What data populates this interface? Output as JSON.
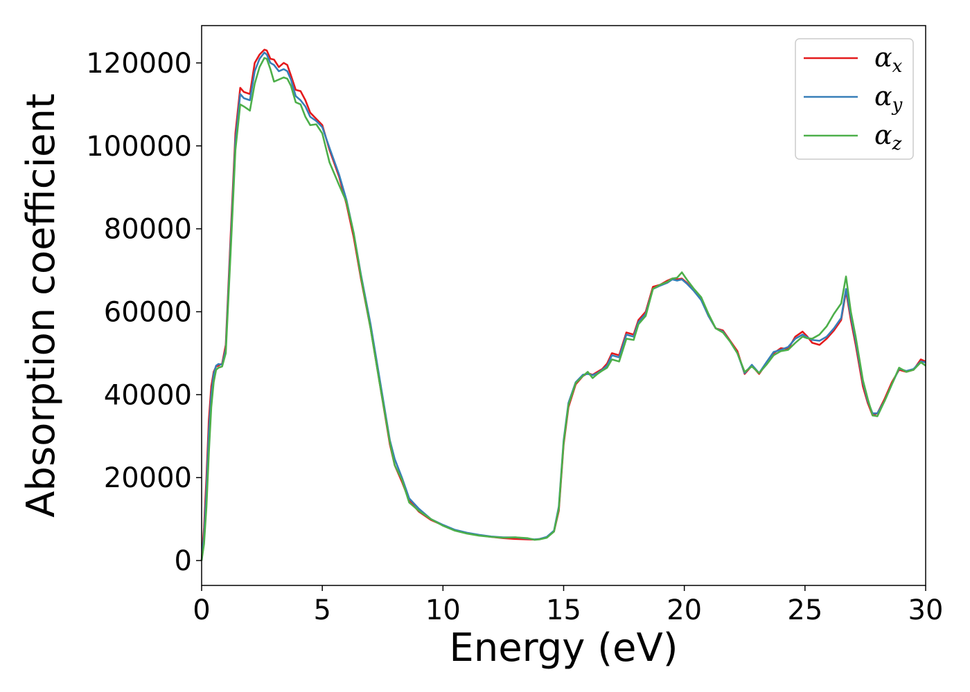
{
  "chart_data": {
    "type": "line",
    "title": "",
    "xlabel": "Energy (eV)",
    "ylabel": "Absorption coefficient",
    "xlim": [
      0,
      30
    ],
    "ylim": [
      -6000,
      129000
    ],
    "xticks": [
      0,
      5,
      10,
      15,
      20,
      25,
      30
    ],
    "xtick_labels": [
      "0",
      "5",
      "10",
      "15",
      "20",
      "25",
      "30"
    ],
    "yticks": [
      0,
      20000,
      40000,
      60000,
      80000,
      100000,
      120000
    ],
    "ytick_labels": [
      "0",
      "20000",
      "40000",
      "60000",
      "80000",
      "100000",
      "120000"
    ],
    "grid": false,
    "legend_position": "top-right",
    "series": [
      {
        "name": "α_x",
        "label_main": "α",
        "label_sub": "x",
        "color": "#e41a1c",
        "x": [
          0,
          0.1,
          0.2,
          0.3,
          0.4,
          0.5,
          0.6,
          0.7,
          0.85,
          1.0,
          1.2,
          1.4,
          1.6,
          1.75,
          2.0,
          2.2,
          2.4,
          2.6,
          2.7,
          2.85,
          3.0,
          3.2,
          3.4,
          3.55,
          3.7,
          3.9,
          4.1,
          4.3,
          4.5,
          4.75,
          5.0,
          5.3,
          5.7,
          6.0,
          6.3,
          6.6,
          7.0,
          7.4,
          7.8,
          8.0,
          8.3,
          8.6,
          9.0,
          9.5,
          10.0,
          10.5,
          11.0,
          11.5,
          12.0,
          12.5,
          13.0,
          13.5,
          13.8,
          14.0,
          14.3,
          14.6,
          14.8,
          15.0,
          15.2,
          15.5,
          15.8,
          16.0,
          16.2,
          16.4,
          16.6,
          16.8,
          17.0,
          17.3,
          17.6,
          17.9,
          18.1,
          18.4,
          18.7,
          19.0,
          19.3,
          19.5,
          19.7,
          19.9,
          20.1,
          20.4,
          20.7,
          21.0,
          21.3,
          21.6,
          21.9,
          22.2,
          22.5,
          22.8,
          23.1,
          23.4,
          23.7,
          24.0,
          24.3,
          24.6,
          24.9,
          25.1,
          25.3,
          25.6,
          25.9,
          26.2,
          26.5,
          26.7,
          26.9,
          27.1,
          27.4,
          27.6,
          27.8,
          28.0,
          28.3,
          28.6,
          28.9,
          29.2,
          29.5,
          29.8,
          30.0
        ],
        "y": [
          0,
          8000,
          20000,
          34000,
          42000,
          45500,
          46800,
          47000,
          47500,
          52000,
          78000,
          103000,
          114000,
          113000,
          112500,
          120000,
          122000,
          123200,
          123000,
          121000,
          120800,
          119000,
          120000,
          119500,
          117000,
          113500,
          113200,
          111000,
          108000,
          106500,
          105000,
          99000,
          92500,
          86000,
          78000,
          68000,
          56000,
          42000,
          28000,
          23000,
          19000,
          14500,
          11800,
          9800,
          8500,
          7300,
          6600,
          6100,
          5700,
          5400,
          5200,
          5100,
          5050,
          5200,
          5600,
          7000,
          12000,
          28000,
          37000,
          42500,
          44500,
          45200,
          44800,
          45500,
          46200,
          47500,
          50000,
          49500,
          55000,
          54500,
          58000,
          60000,
          66000,
          66500,
          67500,
          68000,
          67800,
          68000,
          67000,
          65000,
          63000,
          59000,
          56000,
          55500,
          53000,
          50500,
          45000,
          47000,
          45000,
          47500,
          50000,
          51200,
          51000,
          54000,
          55200,
          54000,
          52500,
          52000,
          53500,
          55500,
          58000,
          65000,
          58000,
          52000,
          42000,
          38000,
          35000,
          35500,
          39000,
          43000,
          46000,
          45500,
          46000,
          48500,
          48000
        ]
      },
      {
        "name": "α_y",
        "label_main": "α",
        "label_sub": "y",
        "color": "#377eb8",
        "x": [
          0,
          0.1,
          0.2,
          0.3,
          0.4,
          0.5,
          0.6,
          0.7,
          0.85,
          1.0,
          1.2,
          1.4,
          1.6,
          1.75,
          2.0,
          2.2,
          2.4,
          2.6,
          2.7,
          2.85,
          3.0,
          3.2,
          3.4,
          3.55,
          3.7,
          3.9,
          4.1,
          4.3,
          4.5,
          4.75,
          5.0,
          5.3,
          5.7,
          6.0,
          6.3,
          6.6,
          7.0,
          7.4,
          7.8,
          8.0,
          8.3,
          8.6,
          9.0,
          9.5,
          10.0,
          10.5,
          11.0,
          11.5,
          12.0,
          12.5,
          13.0,
          13.5,
          13.8,
          14.0,
          14.3,
          14.6,
          14.8,
          15.0,
          15.2,
          15.5,
          15.8,
          16.0,
          16.2,
          16.4,
          16.6,
          16.8,
          17.0,
          17.3,
          17.6,
          17.9,
          18.1,
          18.4,
          18.7,
          19.0,
          19.3,
          19.5,
          19.7,
          19.9,
          20.1,
          20.4,
          20.7,
          21.0,
          21.3,
          21.6,
          21.9,
          22.2,
          22.5,
          22.8,
          23.1,
          23.4,
          23.7,
          24.0,
          24.3,
          24.6,
          24.9,
          25.1,
          25.3,
          25.6,
          25.9,
          26.2,
          26.5,
          26.7,
          26.9,
          27.1,
          27.4,
          27.6,
          27.8,
          28.0,
          28.3,
          28.6,
          28.9,
          29.2,
          29.5,
          29.8,
          30.0
        ],
        "y": [
          0,
          6000,
          17000,
          31000,
          40000,
          45000,
          47000,
          47400,
          47200,
          51000,
          76000,
          101000,
          112500,
          111500,
          111000,
          118000,
          121000,
          122500,
          122000,
          120000,
          119500,
          118000,
          118500,
          118000,
          116000,
          112000,
          111000,
          109500,
          107000,
          106000,
          104500,
          99500,
          93000,
          87000,
          79000,
          69000,
          57000,
          43000,
          29000,
          24500,
          20000,
          15000,
          12500,
          10000,
          8600,
          7400,
          6700,
          6200,
          5800,
          5600,
          5600,
          5300,
          5100,
          5200,
          5700,
          7200,
          13000,
          29000,
          38000,
          43000,
          44800,
          45000,
          44700,
          45200,
          46000,
          47000,
          49500,
          49000,
          54500,
          54000,
          57500,
          59500,
          65500,
          66300,
          67000,
          67800,
          67500,
          67800,
          66800,
          65000,
          62800,
          59000,
          56000,
          55200,
          52800,
          50000,
          45200,
          47200,
          45200,
          47800,
          50300,
          50800,
          51500,
          53500,
          54500,
          53800,
          53200,
          53000,
          54000,
          56000,
          58500,
          65500,
          59000,
          53000,
          43000,
          38500,
          35500,
          35500,
          38500,
          42500,
          46300,
          45700,
          46200,
          48000,
          47800
        ]
      },
      {
        "name": "α_z",
        "label_main": "α",
        "label_sub": "z",
        "color": "#4daf4a",
        "x": [
          0,
          0.1,
          0.2,
          0.3,
          0.4,
          0.5,
          0.6,
          0.7,
          0.85,
          1.0,
          1.2,
          1.4,
          1.6,
          1.75,
          2.0,
          2.2,
          2.4,
          2.6,
          2.7,
          2.85,
          3.0,
          3.2,
          3.4,
          3.55,
          3.7,
          3.9,
          4.1,
          4.3,
          4.5,
          4.75,
          5.0,
          5.3,
          5.7,
          6.0,
          6.3,
          6.6,
          7.0,
          7.4,
          7.8,
          8.0,
          8.3,
          8.6,
          9.0,
          9.5,
          10.0,
          10.5,
          11.0,
          11.5,
          12.0,
          12.5,
          13.0,
          13.5,
          13.8,
          14.0,
          14.3,
          14.6,
          14.8,
          15.0,
          15.2,
          15.5,
          15.8,
          16.0,
          16.2,
          16.4,
          16.6,
          16.8,
          17.0,
          17.3,
          17.6,
          17.9,
          18.1,
          18.4,
          18.7,
          19.0,
          19.3,
          19.5,
          19.7,
          19.9,
          20.1,
          20.4,
          20.7,
          21.0,
          21.3,
          21.6,
          21.9,
          22.2,
          22.5,
          22.8,
          23.1,
          23.4,
          23.7,
          24.0,
          24.3,
          24.6,
          24.9,
          25.1,
          25.3,
          25.6,
          25.9,
          26.2,
          26.5,
          26.7,
          26.9,
          27.1,
          27.4,
          27.6,
          27.8,
          28.0,
          28.3,
          28.6,
          28.9,
          29.2,
          29.5,
          29.8,
          30.0
        ],
        "y": [
          0,
          4000,
          13000,
          26000,
          37000,
          43000,
          46000,
          46500,
          46800,
          50000,
          74000,
          99000,
          110000,
          109500,
          108500,
          115000,
          119000,
          121200,
          121000,
          118500,
          115500,
          116000,
          116500,
          116200,
          114500,
          110500,
          110000,
          107000,
          105000,
          105200,
          103000,
          96000,
          90500,
          86500,
          79000,
          68500,
          56000,
          42000,
          28500,
          23000,
          19500,
          14000,
          12000,
          10000,
          8400,
          7200,
          6500,
          6000,
          5700,
          5500,
          5600,
          5400,
          5000,
          5100,
          5500,
          7000,
          12500,
          28500,
          37500,
          42800,
          44500,
          45500,
          44000,
          45000,
          45800,
          46500,
          48500,
          48000,
          53500,
          53200,
          57000,
          59000,
          65500,
          66500,
          67200,
          68000,
          68200,
          69500,
          67800,
          65500,
          63500,
          59500,
          56000,
          55000,
          52800,
          50000,
          45500,
          46800,
          45200,
          47200,
          49500,
          50500,
          50800,
          52500,
          54000,
          53600,
          53500,
          54500,
          56500,
          59500,
          62000,
          68500,
          60000,
          54000,
          43500,
          39000,
          35000,
          34800,
          38500,
          42500,
          46500,
          45500,
          46000,
          47800,
          47000
        ]
      }
    ]
  }
}
